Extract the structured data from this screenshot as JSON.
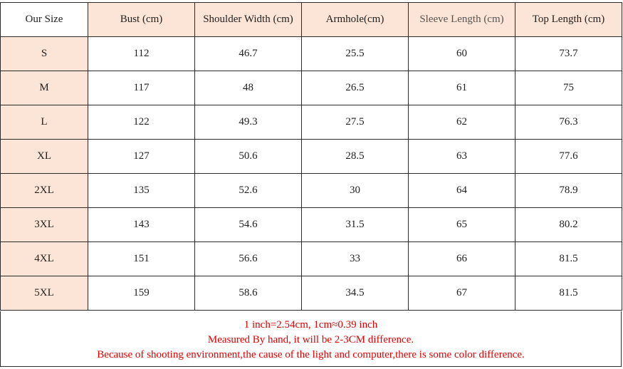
{
  "table": {
    "headers": [
      "Our Size",
      "Bust (cm)",
      "Shoulder Width (cm)",
      "Armhole(cm)",
      "Sleeve Length (cm)",
      "Top Length (cm)"
    ],
    "rows": [
      [
        "S",
        "112",
        "46.7",
        "25.5",
        "60",
        "73.7"
      ],
      [
        "M",
        "117",
        "48",
        "26.5",
        "61",
        "75"
      ],
      [
        "L",
        "122",
        "49.3",
        "27.5",
        "62",
        "76.3"
      ],
      [
        "XL",
        "127",
        "50.6",
        "28.5",
        "63",
        "77.6"
      ],
      [
        "2XL",
        "135",
        "52.6",
        "30",
        "64",
        "78.9"
      ],
      [
        "3XL",
        "143",
        "54.6",
        "31.5",
        "65",
        "80.2"
      ],
      [
        "4XL",
        "151",
        "56.6",
        "33",
        "66",
        "81.5"
      ],
      [
        "5XL",
        "159",
        "58.6",
        "34.5",
        "67",
        "81.5"
      ]
    ]
  },
  "notes": [
    "1 inch=2.54cm, 1cm≈0.39 inch",
    "Measured By hand, it will be 2-3CM difference.",
    "Because of shooting environment,the cause of the light and computer,there is some color difference."
  ],
  "colors": {
    "header_fill": "#fce4d6",
    "size_fill": "#fce4d6",
    "note_text": "#e00000",
    "border": "#2a2a2a"
  }
}
